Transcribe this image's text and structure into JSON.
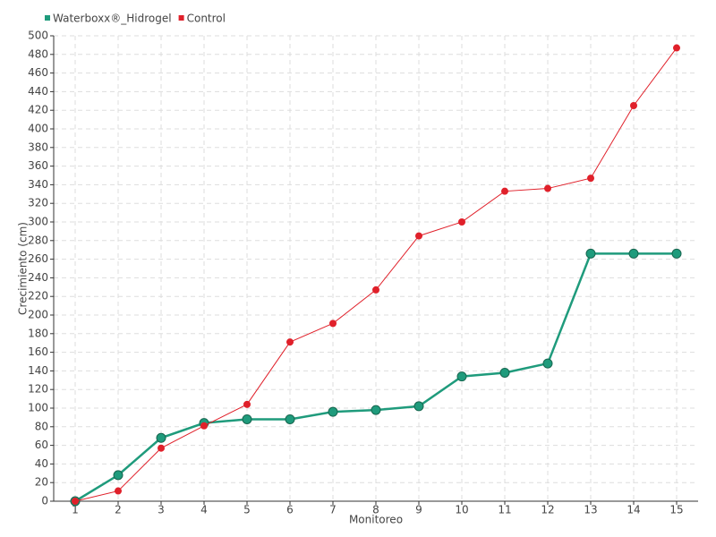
{
  "chart_data": {
    "type": "line",
    "x_label": "Monitoreo",
    "y_label": "Crecimiento (cm)",
    "x": [
      1,
      2,
      3,
      4,
      5,
      6,
      7,
      8,
      9,
      10,
      11,
      12,
      13,
      14,
      15
    ],
    "xlim": [
      0.5,
      15.5
    ],
    "xticks": [
      1,
      2,
      3,
      4,
      5,
      6,
      7,
      8,
      9,
      10,
      11,
      12,
      13,
      14,
      15
    ],
    "ylim": [
      0,
      500
    ],
    "yticks": [
      0,
      20,
      40,
      60,
      80,
      100,
      120,
      140,
      160,
      180,
      200,
      220,
      240,
      260,
      280,
      300,
      320,
      340,
      360,
      380,
      400,
      420,
      440,
      460,
      480,
      500
    ],
    "grid": true,
    "legend": "top-left",
    "series": [
      {
        "name": "Waterboxx®_Hidrogel",
        "color": "#1f9b7c",
        "values": [
          0,
          28,
          68,
          84,
          88,
          88,
          96,
          98,
          102,
          134,
          138,
          148,
          266,
          266,
          266
        ]
      },
      {
        "name": "Control",
        "color": "#e0202a",
        "values": [
          0,
          11,
          57,
          81,
          104,
          171,
          191,
          227,
          285,
          300,
          333,
          336,
          347,
          425,
          487
        ]
      }
    ]
  }
}
